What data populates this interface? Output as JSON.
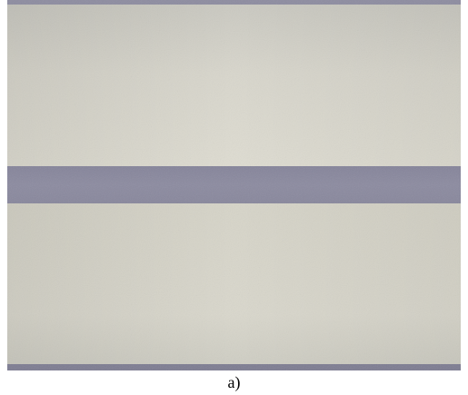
{
  "caption": "a)"
}
